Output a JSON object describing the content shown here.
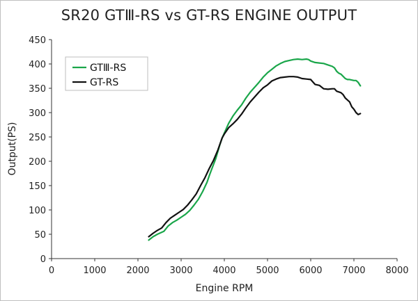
{
  "chart_data": {
    "type": "line",
    "title": "SR20 GTⅢ-RS vs GT-RS ENGINE OUTPUT",
    "xlabel": "Engine RPM",
    "ylabel": "Output(PS)",
    "xlim": [
      0,
      8000
    ],
    "ylim": [
      0,
      450
    ],
    "xticks": [
      0,
      1000,
      2000,
      3000,
      4000,
      5000,
      6000,
      7000,
      8000
    ],
    "yticks": [
      0,
      50,
      100,
      150,
      200,
      250,
      300,
      350,
      400,
      450
    ],
    "grid": false,
    "legend_position": "top-left",
    "series": [
      {
        "name": "GTⅢ-RS",
        "color": "#1aa64a",
        "x": [
          2250,
          2350,
          2450,
          2600,
          2700,
          2800,
          2900,
          3000,
          3100,
          3200,
          3300,
          3400,
          3500,
          3600,
          3650,
          3700,
          3800,
          3900,
          3950,
          4000,
          4100,
          4200,
          4300,
          4400,
          4500,
          4600,
          4700,
          4800,
          4900,
          5000,
          5100,
          5200,
          5300,
          5400,
          5500,
          5600,
          5700,
          5800,
          5900,
          5950,
          6000,
          6100,
          6200,
          6300,
          6400,
          6500,
          6550,
          6600,
          6650,
          6700,
          6800,
          6850,
          6900,
          7000,
          7050,
          7100,
          7150
        ],
        "y": [
          38,
          45,
          50,
          56,
          67,
          74,
          79,
          85,
          91,
          99,
          110,
          122,
          138,
          157,
          170,
          182,
          205,
          235,
          248,
          258,
          278,
          293,
          305,
          316,
          330,
          342,
          352,
          362,
          373,
          382,
          389,
          396,
          401,
          405,
          407,
          409,
          410,
          409,
          410,
          409,
          406,
          403,
          402,
          401,
          398,
          395,
          392,
          385,
          381,
          379,
          370,
          368,
          368,
          366,
          366,
          362,
          355
        ]
      },
      {
        "name": "GT-RS",
        "color": "#111111",
        "x": [
          2250,
          2350,
          2450,
          2550,
          2650,
          2750,
          2850,
          2950,
          3050,
          3150,
          3250,
          3350,
          3450,
          3550,
          3650,
          3750,
          3850,
          3950,
          4000,
          4100,
          4200,
          4300,
          4400,
          4500,
          4600,
          4700,
          4800,
          4900,
          5000,
          5100,
          5200,
          5300,
          5400,
          5500,
          5600,
          5700,
          5800,
          5900,
          6000,
          6050,
          6100,
          6200,
          6300,
          6400,
          6500,
          6550,
          6600,
          6700,
          6750,
          6800,
          6850,
          6900,
          6950,
          7000,
          7050,
          7100,
          7150
        ],
        "y": [
          45,
          52,
          58,
          63,
          74,
          83,
          89,
          95,
          101,
          110,
          121,
          133,
          150,
          166,
          185,
          202,
          223,
          248,
          256,
          269,
          277,
          286,
          297,
          310,
          322,
          332,
          342,
          351,
          357,
          365,
          369,
          372,
          373,
          374,
          374,
          373,
          370,
          369,
          368,
          363,
          358,
          356,
          349,
          348,
          349,
          349,
          344,
          341,
          337,
          330,
          326,
          322,
          312,
          307,
          300,
          296,
          298
        ]
      }
    ]
  }
}
